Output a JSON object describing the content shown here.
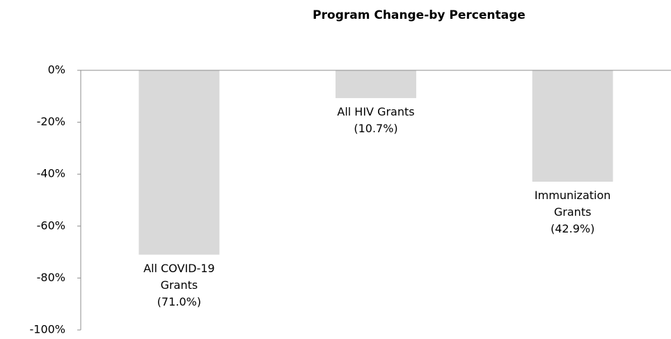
{
  "chart_data": {
    "type": "bar",
    "title": "Program Change-by Percentage",
    "categories": [
      "All COVID-19 Grants",
      "All HIV Grants",
      "Immunization Grants"
    ],
    "values": [
      -71.0,
      -10.7,
      -42.9
    ],
    "value_labels": [
      "(71.0%)",
      "(10.7%)",
      "(42.9%)"
    ],
    "color": "#d9d9d9",
    "ylim": [
      -100,
      0
    ],
    "yticks": [
      {
        "value": 0,
        "label": "0%"
      },
      {
        "value": -20,
        "label": "-20%"
      },
      {
        "value": -40,
        "label": "-40%"
      },
      {
        "value": -60,
        "label": "-60%"
      },
      {
        "value": -80,
        "label": "-80%"
      },
      {
        "value": -100,
        "label": "-100%"
      }
    ],
    "grid": false
  }
}
